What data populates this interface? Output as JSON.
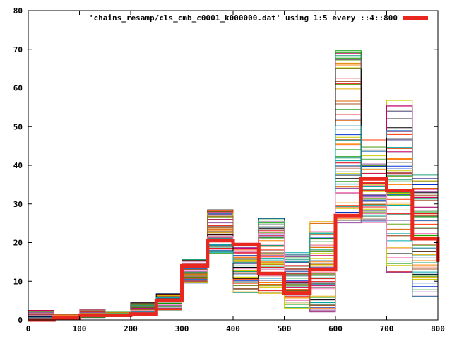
{
  "chart_data": {
    "type": "line",
    "style": "steps",
    "title": "",
    "xlabel": "",
    "ylabel": "",
    "xlim": [
      0,
      800
    ],
    "ylim": [
      0,
      80
    ],
    "x_ticks": [
      "0",
      "100",
      "200",
      "300",
      "400",
      "500",
      "600",
      "700",
      "800"
    ],
    "y_ticks": [
      "0",
      "10",
      "20",
      "30",
      "40",
      "50",
      "60",
      "70",
      "80"
    ],
    "grid": false,
    "legend_position": "top-right",
    "legend_label": "'chains_resamp/cls_cmb_c0001_k000000.dat' using 1:5 every ::4::800",
    "highlight_color": "#e8271e",
    "bin_edges": [
      0,
      50,
      100,
      150,
      200,
      250,
      300,
      350,
      400,
      450,
      500,
      550,
      600,
      650,
      700,
      750,
      800
    ],
    "highlight_series": {
      "name": "'chains_resamp/cls_cmb_c0001_k000000.dat' using 1:5 every ::4::800",
      "x": [
        0,
        50,
        100,
        150,
        200,
        250,
        300,
        350,
        400,
        450,
        500,
        550,
        600,
        650,
        700,
        750,
        800
      ],
      "y": [
        0,
        0.5,
        1.2,
        1.2,
        1.5,
        5,
        14,
        20.5,
        19.5,
        12,
        7,
        13,
        27,
        36.5,
        33.5,
        21,
        15
      ]
    },
    "ensemble_ranges": {
      "x_bins": [
        0,
        50,
        100,
        150,
        200,
        250,
        300,
        350,
        400,
        450,
        500,
        550,
        600,
        650,
        700,
        750,
        800
      ],
      "min": [
        0,
        0.2,
        0.6,
        0.8,
        1.2,
        2.5,
        9.5,
        17,
        7,
        6.5,
        3,
        2,
        25,
        25,
        11,
        6,
        6
      ],
      "max": [
        2.5,
        1.5,
        2.8,
        2,
        4.5,
        7,
        16,
        28.5,
        20,
        26.5,
        18,
        25.5,
        70.5,
        47,
        57,
        38,
        38
      ]
    }
  }
}
